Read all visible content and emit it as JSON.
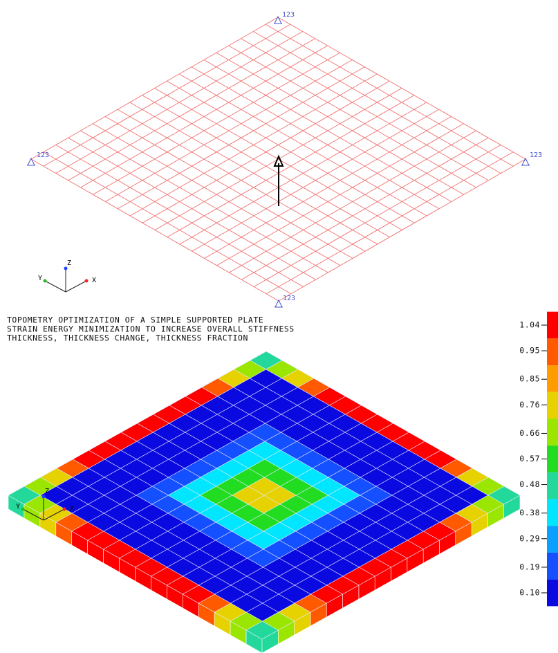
{
  "top_view": {
    "supports": [
      "123",
      "123",
      "123",
      "123"
    ],
    "axes": {
      "x": "X",
      "y": "Y",
      "z": "Z"
    }
  },
  "bottom_view": {
    "title_lines": [
      "TOPOMETRY OPTIMIZATION OF A SIMPLE SUPPORTED PLATE",
      "STRAIN ENERGY MINIMIZATION TO INCREASE OVERALL STIFFNESS",
      "THICKNESS, THICKNESS CHANGE, THICKNESS FRACTION"
    ],
    "axes": {
      "x": "X",
      "y": "Y",
      "z": "Z"
    },
    "legend": {
      "ticks": [
        1.04,
        0.95,
        0.85,
        0.76,
        0.66,
        0.57,
        0.48,
        0.38,
        0.29,
        0.19,
        {
          "value": 0.1,
          "label": "0.10"
        }
      ],
      "colors": [
        "#ff0000",
        "#ff5a00",
        "#ff9c00",
        "#e6d200",
        "#9ae600",
        "#22dc22",
        "#22d89a",
        "#00e6ff",
        "#0aa0ff",
        "#1450ff",
        "#0a0ae0"
      ]
    }
  }
}
